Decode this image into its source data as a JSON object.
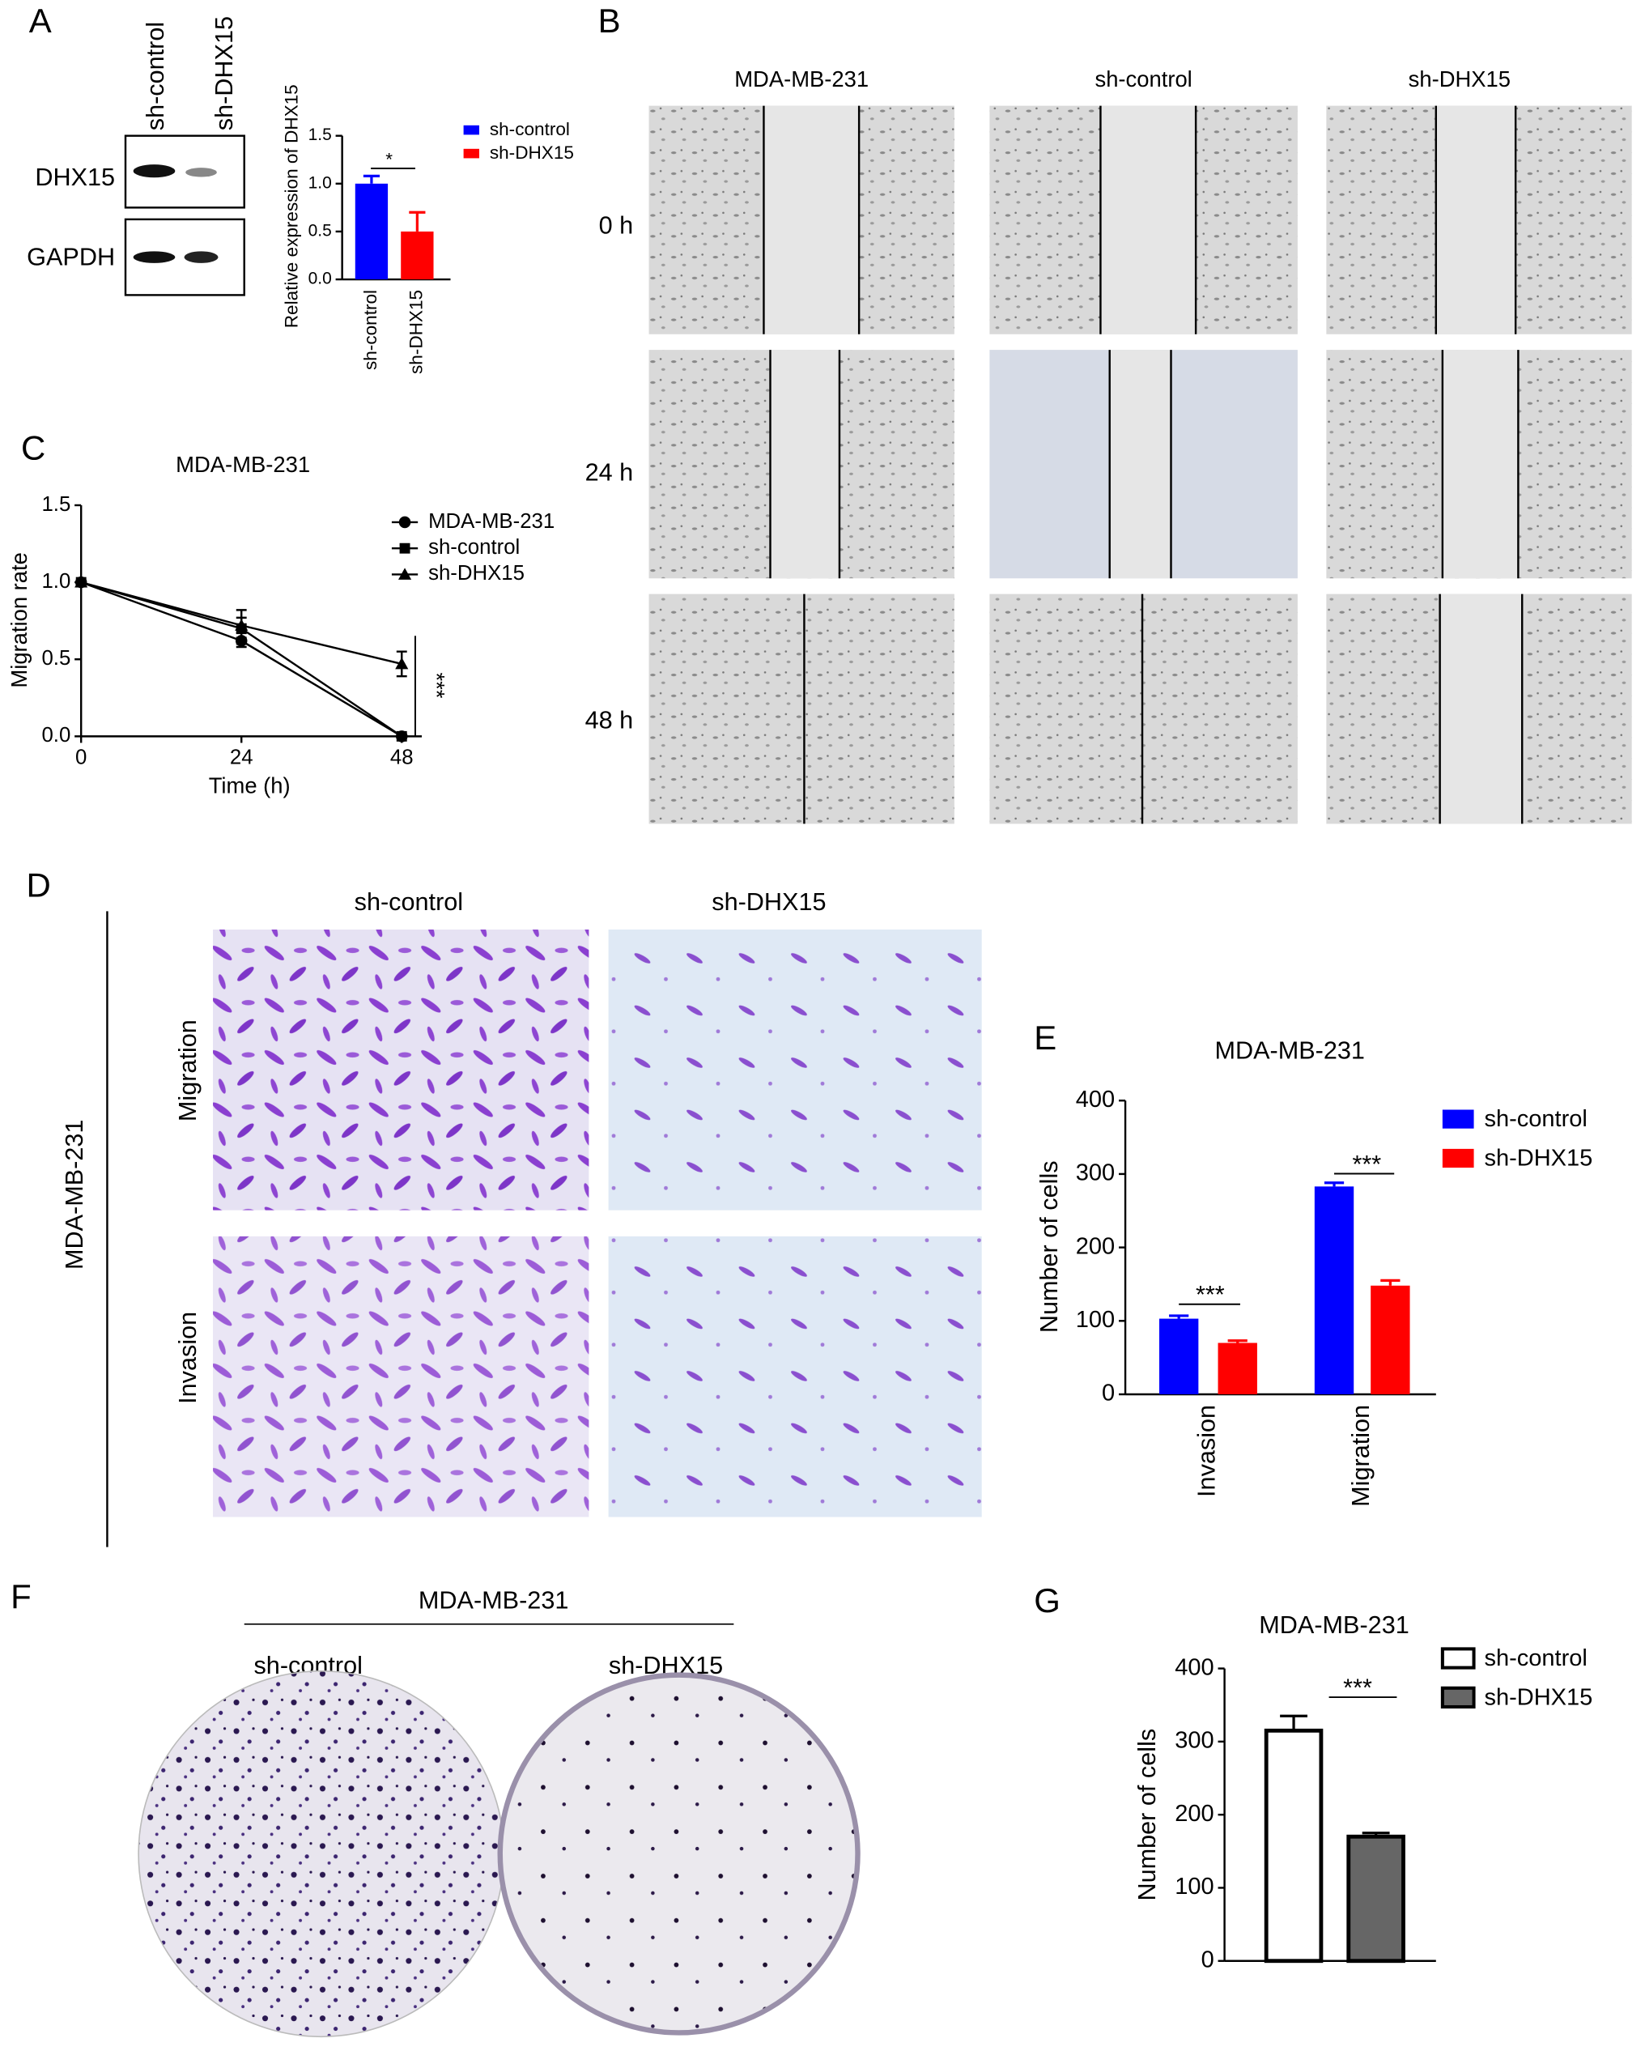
{
  "figure": {
    "panel_labels": [
      "A",
      "B",
      "C",
      "D",
      "E",
      "F",
      "G"
    ],
    "blot": {
      "lanes": [
        "sh-control",
        "sh-DHX15"
      ],
      "bands": [
        "DHX15",
        "GAPDH"
      ]
    },
    "wound": {
      "columns": [
        "MDA-MB-231",
        "sh-control",
        "sh-DHX15"
      ],
      "rows": [
        "0 h",
        "24 h",
        "48 h"
      ]
    },
    "transwell": {
      "cell_line": "MDA-MB-231",
      "columns": [
        "sh-control",
        "sh-DHX15"
      ],
      "rows": [
        "Migration",
        "Invasion"
      ]
    },
    "colony": {
      "cell_line": "MDA-MB-231",
      "columns": [
        "sh-control",
        "sh-DHX15"
      ]
    }
  },
  "chart_data": [
    {
      "type": "bar",
      "ylabel": "Relative expression of DHX15",
      "categories": [
        "sh-control",
        "sh-DHX15"
      ],
      "values": [
        1.0,
        0.5
      ],
      "errors": [
        0.08,
        0.2
      ],
      "colors": [
        "#0000ff",
        "#ff0000"
      ],
      "ylim": [
        0,
        1.5
      ],
      "yticks": [
        {
          "value": 0,
          "label": "0.0"
        },
        0.5,
        {
          "value": 1,
          "label": "1.0"
        },
        1.5
      ],
      "legend": "right",
      "annotations": [
        "*"
      ]
    },
    {
      "type": "line",
      "title": "MDA-MB-231",
      "xlabel": "Time (h)",
      "ylabel": "Migration rate",
      "x": [
        0,
        24,
        48
      ],
      "series": [
        {
          "name": "MDA-MB-231",
          "color": "#000000",
          "marker": "circle",
          "values": [
            1.0,
            0.62,
            0.0
          ],
          "errors": [
            0,
            0.02,
            0
          ]
        },
        {
          "name": "sh-control",
          "color": "#000000",
          "marker": "square",
          "values": [
            1.0,
            0.7,
            0.0
          ],
          "errors": [
            0,
            0.12,
            0
          ]
        },
        {
          "name": "sh-DHX15",
          "color": "#000000",
          "marker": "triangle",
          "values": [
            1.0,
            0.72,
            0.47
          ],
          "errors": [
            0,
            0.05,
            0.08
          ]
        }
      ],
      "xlim": [
        0,
        51
      ],
      "xticks": [
        0,
        24,
        48
      ],
      "ylim": [
        0,
        1.5
      ],
      "yticks": [
        {
          "value": 0,
          "label": "0.0"
        },
        0.5,
        {
          "value": 1,
          "label": "1.0"
        },
        1.5
      ],
      "legend": "upper right",
      "annotations": [
        "***"
      ]
    },
    {
      "type": "bar",
      "title": "MDA-MB-231",
      "ylabel": "Number of cells",
      "categories": [
        "Invasion",
        "Migration"
      ],
      "series": [
        {
          "name": "sh-control",
          "color": "#0000ff",
          "values": [
            103,
            283
          ],
          "errors": [
            4,
            5
          ]
        },
        {
          "name": "sh-DHX15",
          "color": "#ff0000",
          "values": [
            70,
            148
          ],
          "errors": [
            3,
            7
          ]
        }
      ],
      "ylim": [
        0,
        400
      ],
      "yticks": [
        0,
        100,
        200,
        300,
        400
      ],
      "legend": "upper right",
      "annotations": [
        "***",
        "***"
      ]
    },
    {
      "type": "bar",
      "title": "MDA-MB-231",
      "ylabel": "Number of cells",
      "series": [
        {
          "name": "sh-control",
          "color": "#ffffff",
          "values": [
            315
          ],
          "errors": [
            20
          ]
        },
        {
          "name": "sh-DHX15",
          "color": "#666666",
          "values": [
            170
          ],
          "errors": [
            5
          ]
        }
      ],
      "edgecolor": "#000000",
      "ylim": [
        0,
        400
      ],
      "yticks": [
        0,
        100,
        200,
        300,
        400
      ],
      "legend": "upper right",
      "annotations": [
        "***"
      ]
    }
  ]
}
